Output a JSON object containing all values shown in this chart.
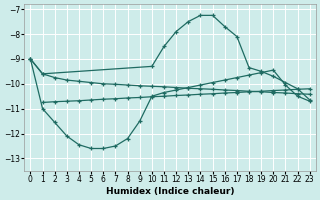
{
  "xlabel": "Humidex (Indice chaleur)",
  "xlim": [
    -0.5,
    23.5
  ],
  "ylim": [
    -13.5,
    -6.8
  ],
  "yticks": [
    -13,
    -12,
    -11,
    -10,
    -9,
    -8,
    -7
  ],
  "xticks": [
    0,
    1,
    2,
    3,
    4,
    5,
    6,
    7,
    8,
    9,
    10,
    11,
    12,
    13,
    14,
    15,
    16,
    17,
    18,
    19,
    20,
    21,
    22,
    23
  ],
  "bg_color": "#ceecea",
  "grid_color": "#ffffff",
  "line_color": "#1f6b62",
  "curve1": {
    "x": [
      0,
      1,
      2,
      3,
      4,
      5,
      6,
      7,
      8,
      9,
      10,
      11,
      12,
      13,
      14,
      15,
      16,
      17,
      18,
      19,
      20,
      21,
      22,
      23
    ],
    "y": [
      -9.0,
      -9.6,
      -9.75,
      -9.85,
      -9.9,
      -9.95,
      -10.0,
      -10.02,
      -10.05,
      -10.08,
      -10.1,
      -10.12,
      -10.15,
      -10.18,
      -10.2,
      -10.22,
      -10.25,
      -10.27,
      -10.3,
      -10.32,
      -10.35,
      -10.37,
      -10.4,
      -10.42
    ]
  },
  "curve2": {
    "x": [
      1,
      2,
      3,
      4,
      5,
      6,
      7,
      8,
      9,
      10,
      11,
      12,
      13,
      14,
      15,
      16,
      17,
      18,
      19,
      20,
      21,
      22,
      23
    ],
    "y": [
      -10.75,
      -10.72,
      -10.7,
      -10.68,
      -10.65,
      -10.62,
      -10.6,
      -10.57,
      -10.55,
      -10.52,
      -10.5,
      -10.47,
      -10.45,
      -10.42,
      -10.4,
      -10.37,
      -10.35,
      -10.32,
      -10.3,
      -10.27,
      -10.25,
      -10.22,
      -10.2
    ]
  },
  "curve3_bell": {
    "x": [
      0,
      1,
      10,
      11,
      12,
      13,
      14,
      15,
      16,
      17,
      18,
      19,
      20,
      21,
      22,
      23
    ],
    "y": [
      -9.0,
      -9.6,
      -9.3,
      -8.5,
      -7.9,
      -7.5,
      -7.25,
      -7.25,
      -7.7,
      -8.1,
      -9.35,
      -9.5,
      -9.7,
      -9.95,
      -10.2,
      -10.65
    ]
  },
  "curve4_U": {
    "x": [
      0,
      1,
      2,
      3,
      4,
      5,
      6,
      7,
      8,
      9,
      10,
      11,
      12,
      13,
      14,
      15,
      16,
      17,
      18,
      19,
      20,
      21,
      22,
      23
    ],
    "y": [
      -9.0,
      -11.0,
      -11.55,
      -12.1,
      -12.45,
      -12.6,
      -12.6,
      -12.5,
      -12.2,
      -11.5,
      -10.5,
      -10.35,
      -10.25,
      -10.15,
      -10.05,
      -9.95,
      -9.85,
      -9.75,
      -9.65,
      -9.55,
      -9.45,
      -10.05,
      -10.5,
      -10.7
    ]
  }
}
